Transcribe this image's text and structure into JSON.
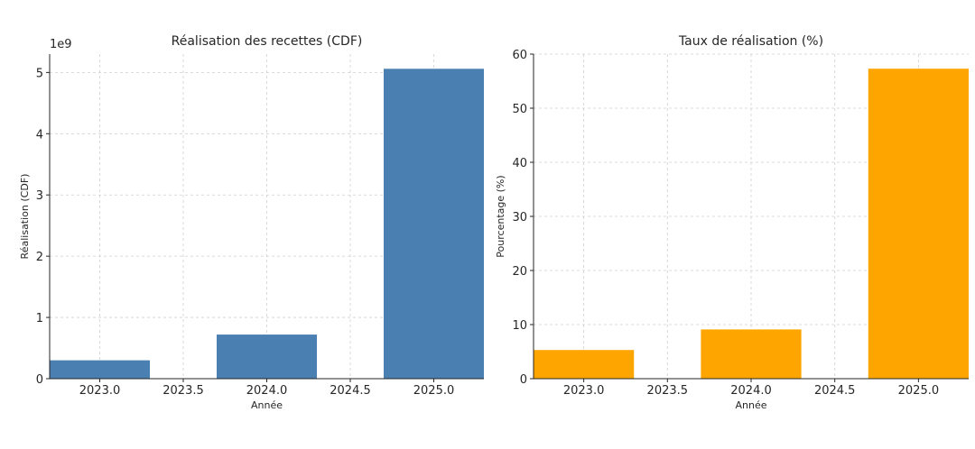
{
  "chart_data": [
    {
      "type": "bar",
      "title": "Réalisation des recettes (CDF)",
      "xlabel": "Année",
      "ylabel": "Réalisation (CDF)",
      "y_offset_label": "1e9",
      "x": [
        2023,
        2024,
        2025
      ],
      "values": [
        300000000,
        720000000,
        5060000000
      ],
      "bar_width": 0.6,
      "xlim": [
        2022.7,
        2025.3
      ],
      "ylim": [
        0,
        5300000000
      ],
      "x_ticks": [
        2023.0,
        2023.5,
        2024.0,
        2024.5,
        2025.0
      ],
      "x_tick_labels": [
        "2023.0",
        "2023.5",
        "2024.0",
        "2024.5",
        "2025.0"
      ],
      "y_ticks": [
        0,
        1000000000,
        2000000000,
        3000000000,
        4000000000,
        5000000000
      ],
      "y_tick_labels": [
        "0",
        "1",
        "2",
        "3",
        "4",
        "5"
      ],
      "color": "#4a7fb2",
      "grid": true
    },
    {
      "type": "bar",
      "title": "Taux de réalisation (%)",
      "xlabel": "Année",
      "ylabel": "Pourcentage (%)",
      "x": [
        2023,
        2024,
        2025
      ],
      "values": [
        5.3,
        9.1,
        57.3
      ],
      "bar_width": 0.6,
      "xlim": [
        2022.7,
        2025.3
      ],
      "ylim": [
        0,
        60
      ],
      "x_ticks": [
        2023.0,
        2023.5,
        2024.0,
        2024.5,
        2025.0
      ],
      "x_tick_labels": [
        "2023.0",
        "2023.5",
        "2024.0",
        "2024.5",
        "2025.0"
      ],
      "y_ticks": [
        0,
        10,
        20,
        30,
        40,
        50,
        60
      ],
      "y_tick_labels": [
        "0",
        "10",
        "20",
        "30",
        "40",
        "50",
        "60"
      ],
      "color": "#ffa500",
      "grid": true
    }
  ]
}
